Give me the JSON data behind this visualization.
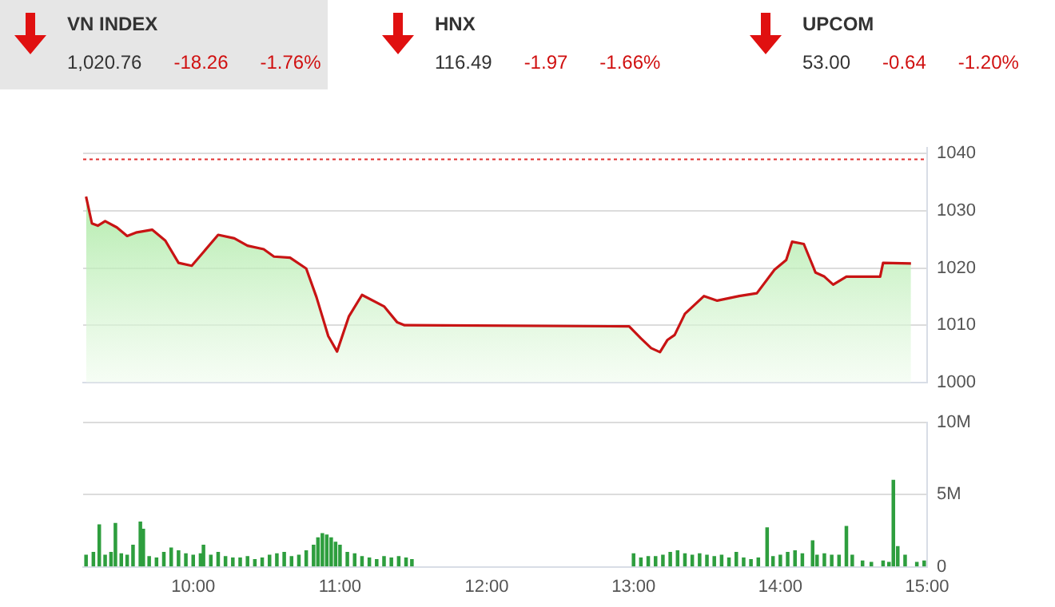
{
  "chart_data": [
    {
      "type": "other",
      "annotations": [
        "VN INDEX",
        "1,020.76",
        "-18.26",
        "-1.76%",
        "HNX",
        "116.49",
        "-1.97",
        "-1.66%",
        "UPCOM",
        "53.00",
        "-0.64",
        "-1.20%"
      ]
    },
    {
      "type": "area",
      "xlim": [
        9.25,
        15
      ],
      "ylim": [
        1000,
        1041
      ],
      "yticks": [
        1000,
        1010,
        1020,
        1030,
        1040
      ],
      "grid": "y",
      "tick_labels": "y",
      "ref_lines": [
        {
          "axis": "y",
          "value": 1039.02,
          "color": "#e03030",
          "line_style": "dotted"
        }
      ],
      "series": [
        {
          "color": "#c81414",
          "x": [
            9.27,
            9.31,
            9.35,
            9.4,
            9.48,
            9.55,
            9.61,
            9.72,
            9.81,
            9.9,
            9.99,
            10.06,
            10.17,
            10.28,
            10.37,
            10.48,
            10.55,
            10.66,
            10.77,
            10.84,
            10.92,
            10.98,
            11.06,
            11.15,
            11.3,
            11.39,
            11.44,
            12.97,
            13.05,
            13.12,
            13.18,
            13.23,
            13.28,
            13.35,
            13.48,
            13.57,
            13.72,
            13.84,
            13.96,
            14.04,
            14.08,
            14.16,
            14.24,
            14.3,
            14.36,
            14.45,
            14.68,
            14.7,
            14.89
          ],
          "values": [
            1032.5,
            1027.8,
            1027.4,
            1028.2,
            1027.1,
            1025.6,
            1026.2,
            1026.7,
            1024.8,
            1020.9,
            1020.4,
            1022.5,
            1025.8,
            1025.2,
            1023.9,
            1023.3,
            1022.0,
            1021.8,
            1019.9,
            1014.9,
            1008.1,
            1005.4,
            1011.5,
            1015.3,
            1013.3,
            1010.5,
            1010.0,
            1009.8,
            1007.7,
            1006.0,
            1005.3,
            1007.4,
            1008.3,
            1012.0,
            1015.1,
            1014.3,
            1015.1,
            1015.6,
            1019.7,
            1021.4,
            1024.6,
            1024.2,
            1019.2,
            1018.5,
            1017.1,
            1018.5,
            1018.5,
            1020.9,
            1020.8
          ]
        }
      ]
    },
    {
      "type": "bar",
      "xlim": [
        9.25,
        15
      ],
      "xticks": [
        {
          "value": 10,
          "label": "10:00"
        },
        {
          "value": 11,
          "label": "11:00"
        },
        {
          "value": 12,
          "label": "12:00"
        },
        {
          "value": 13,
          "label": "13:00"
        },
        {
          "value": 14,
          "label": "14:00"
        },
        {
          "value": 15,
          "label": "15:00"
        }
      ],
      "ylim": [
        0,
        10
      ],
      "yticks": [
        {
          "value": 0,
          "label": "0"
        },
        {
          "value": 5,
          "label": "5M"
        },
        {
          "value": 10,
          "label": "10M"
        }
      ],
      "grid": "y",
      "series": [
        {
          "color": "#2e9e3e",
          "x": [
            9.27,
            9.32,
            9.36,
            9.4,
            9.44,
            9.47,
            9.51,
            9.55,
            9.59,
            9.64,
            9.66,
            9.7,
            9.75,
            9.8,
            9.85,
            9.9,
            9.95,
            10.0,
            10.05,
            10.07,
            10.12,
            10.17,
            10.22,
            10.27,
            10.32,
            10.37,
            10.42,
            10.47,
            10.52,
            10.57,
            10.62,
            10.67,
            10.72,
            10.77,
            10.82,
            10.85,
            10.88,
            10.91,
            10.94,
            10.97,
            11.0,
            11.05,
            11.1,
            11.15,
            11.2,
            11.25,
            11.3,
            11.35,
            11.4,
            11.45,
            11.49,
            13.0,
            13.05,
            13.1,
            13.15,
            13.2,
            13.25,
            13.3,
            13.35,
            13.4,
            13.45,
            13.5,
            13.55,
            13.6,
            13.65,
            13.7,
            13.75,
            13.8,
            13.85,
            13.91,
            13.95,
            14.0,
            14.05,
            14.1,
            14.15,
            14.22,
            14.25,
            14.3,
            14.35,
            14.4,
            14.45,
            14.49,
            14.56,
            14.62,
            14.7,
            14.74,
            14.77,
            14.8,
            14.85,
            14.93,
            14.98
          ],
          "values": [
            0.8,
            1.0,
            2.9,
            0.8,
            1.0,
            3.0,
            0.9,
            0.8,
            1.5,
            3.1,
            2.6,
            0.7,
            0.6,
            1.0,
            1.3,
            1.1,
            0.9,
            0.8,
            0.9,
            1.5,
            0.8,
            1.0,
            0.7,
            0.6,
            0.6,
            0.7,
            0.5,
            0.6,
            0.8,
            0.9,
            1.0,
            0.7,
            0.8,
            1.1,
            1.5,
            2.0,
            2.3,
            2.2,
            2.0,
            1.7,
            1.5,
            1.0,
            0.9,
            0.7,
            0.6,
            0.5,
            0.7,
            0.6,
            0.7,
            0.6,
            0.5,
            0.9,
            0.6,
            0.7,
            0.7,
            0.8,
            1.0,
            1.1,
            0.9,
            0.8,
            0.9,
            0.8,
            0.7,
            0.8,
            0.6,
            1.0,
            0.6,
            0.5,
            0.6,
            2.7,
            0.7,
            0.8,
            1.0,
            1.1,
            0.9,
            1.8,
            0.8,
            0.9,
            0.8,
            0.8,
            2.8,
            0.8,
            0.4,
            0.3,
            0.4,
            0.3,
            6.0,
            1.4,
            0.8,
            0.3,
            0.4
          ]
        }
      ]
    }
  ]
}
